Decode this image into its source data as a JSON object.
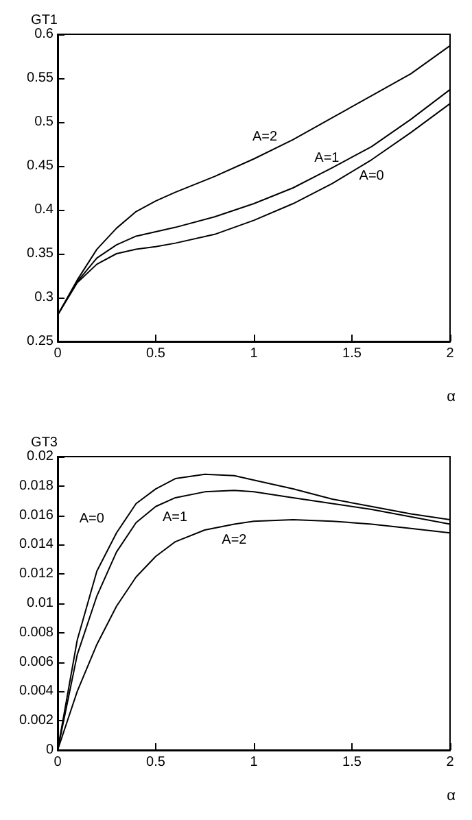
{
  "chart_data": [
    {
      "type": "line",
      "ylabel": "GT1",
      "xlabel": "α",
      "x": [
        0,
        0.1,
        0.2,
        0.3,
        0.4,
        0.5,
        0.6,
        0.8,
        1.0,
        1.2,
        1.4,
        1.6,
        1.8,
        2.0
      ],
      "series": [
        {
          "name": "A=0",
          "color": "#000000",
          "values": [
            0.28,
            0.317,
            0.338,
            0.35,
            0.355,
            0.358,
            0.362,
            0.372,
            0.388,
            0.407,
            0.43,
            0.457,
            0.488,
            0.521
          ]
        },
        {
          "name": "A=1",
          "color": "#000000",
          "values": [
            0.28,
            0.318,
            0.345,
            0.36,
            0.37,
            0.375,
            0.38,
            0.392,
            0.407,
            0.425,
            0.448,
            0.472,
            0.503,
            0.537
          ]
        },
        {
          "name": "A=2",
          "color": "#000000",
          "values": [
            0.28,
            0.32,
            0.355,
            0.379,
            0.398,
            0.41,
            0.42,
            0.438,
            0.458,
            0.48,
            0.505,
            0.53,
            0.555,
            0.587
          ]
        }
      ],
      "xlim": [
        0,
        2
      ],
      "xticks": [
        0,
        0.5,
        1,
        1.5,
        2
      ],
      "ylim": [
        0.25,
        0.6
      ],
      "yticks": [
        0.25,
        0.3,
        0.35,
        0.4,
        0.45,
        0.5,
        0.55,
        0.6
      ],
      "grid": false,
      "legend": false,
      "marker": "none",
      "line_style": "solid"
    },
    {
      "type": "line",
      "ylabel": "GT3",
      "xlabel": "α",
      "x": [
        0,
        0.1,
        0.2,
        0.3,
        0.4,
        0.5,
        0.6,
        0.75,
        0.9,
        1.0,
        1.2,
        1.4,
        1.6,
        1.8,
        2.0
      ],
      "series": [
        {
          "name": "A=0",
          "color": "#000000",
          "values": [
            0,
            0.0075,
            0.0122,
            0.0148,
            0.0168,
            0.0178,
            0.0185,
            0.0188,
            0.0187,
            0.0184,
            0.0178,
            0.0171,
            0.0166,
            0.0161,
            0.0157
          ]
        },
        {
          "name": "A=1",
          "color": "#000000",
          "values": [
            0,
            0.0065,
            0.0105,
            0.0135,
            0.0155,
            0.0166,
            0.0172,
            0.0176,
            0.0177,
            0.0176,
            0.0172,
            0.0168,
            0.0164,
            0.0159,
            0.0154
          ]
        },
        {
          "name": "A=2",
          "color": "#000000",
          "values": [
            0,
            0.004,
            0.0072,
            0.0098,
            0.0118,
            0.0132,
            0.0142,
            0.015,
            0.0154,
            0.0156,
            0.0157,
            0.0156,
            0.0154,
            0.0151,
            0.0148
          ]
        }
      ],
      "xlim": [
        0,
        2
      ],
      "xticks": [
        0,
        0.5,
        1,
        1.5,
        2
      ],
      "ylim": [
        0,
        0.02
      ],
      "yticks": [
        0,
        0.002,
        0.004,
        0.006,
        0.008,
        0.01,
        0.012,
        0.014,
        0.016,
        0.018,
        0.02
      ],
      "grid": false,
      "legend": false,
      "marker": "none",
      "line_style": "solid"
    }
  ]
}
